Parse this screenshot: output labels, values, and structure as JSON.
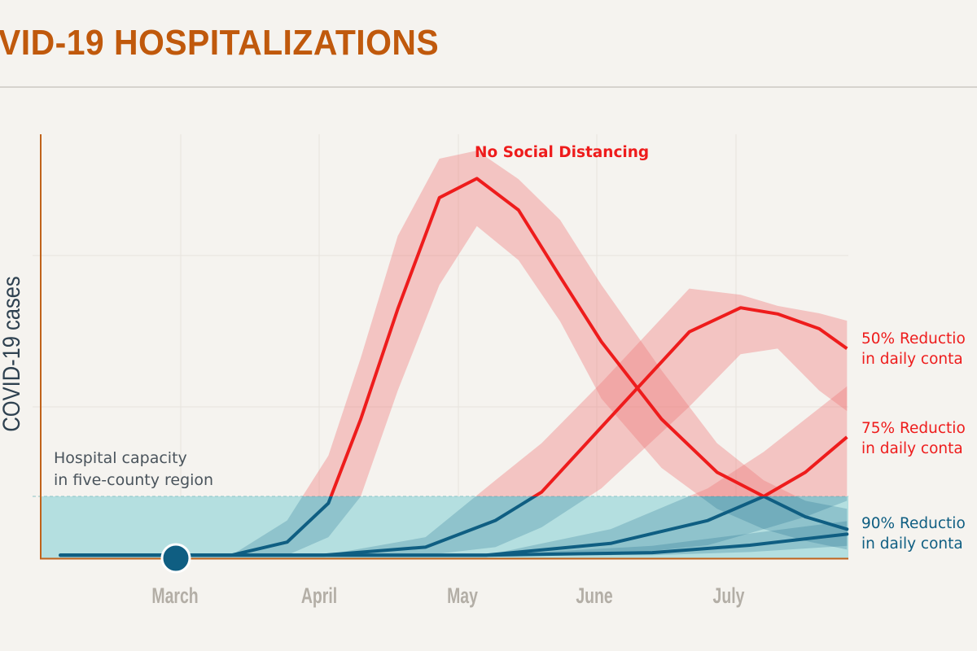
{
  "header": {
    "title": "VID-19 HOSPITALIZATIONS"
  },
  "chart_data": {
    "type": "line",
    "title": "VID-19 HOSPITALIZATIONS",
    "ylabel": "COVID-19 cases",
    "xlabel": "",
    "x_ticks": [
      "March",
      "April",
      "May",
      "June",
      "July"
    ],
    "grid": true,
    "colors": {
      "above_capacity": "#ee1c1c",
      "below_capacity": "#0f5e82",
      "band": "#f08a8a",
      "capacity_fill": "#b4dfe0",
      "axis": "#c0621a"
    },
    "capacity": {
      "label_line1": "Hospital capacity",
      "label_line2": "in five-county region",
      "value": 1
    },
    "marker": {
      "x": "Mar 1"
    },
    "series": [
      {
        "name": "No Social Distancing",
        "label_lines": [
          "No Social Distancing"
        ],
        "x": [
          "Feb 5",
          "Mar 12",
          "Mar 24",
          "Apr 3",
          "Apr 10",
          "Apr 18",
          "Apr 27",
          "May 5",
          "May 14",
          "May 23",
          "Jun 2",
          "Jun 15",
          "Jun 27",
          "Jul 7",
          "Jul 16",
          "Jul 25"
        ],
        "y": [
          0.05,
          0.05,
          0.26,
          0.89,
          2.25,
          4.03,
          5.83,
          6.14,
          5.63,
          4.55,
          3.5,
          2.25,
          1.39,
          1.0,
          0.67,
          0.47
        ],
        "hi": [
          0.05,
          0.05,
          0.61,
          1.66,
          3.24,
          5.21,
          6.46,
          6.59,
          6.13,
          5.47,
          4.42,
          3.04,
          1.86,
          1.26,
          0.93,
          0.8
        ],
        "lo": [
          0.05,
          0.05,
          0.05,
          0.34,
          1.0,
          2.71,
          4.42,
          5.37,
          4.82,
          3.83,
          2.58,
          1.46,
          0.8,
          0.47,
          0.28,
          0.14
        ]
      },
      {
        "name": "50% Reductio in daily conta",
        "label_lines": [
          "50% Reductio",
          "in daily conta"
        ],
        "x": [
          "Feb 5",
          "Apr 2",
          "Apr 24",
          "May 9",
          "May 19",
          "Jun 2",
          "Jun 21",
          "Jul 2",
          "Jul 10",
          "Jul 19",
          "Jul 25"
        ],
        "y": [
          0.05,
          0.05,
          0.18,
          0.61,
          1.07,
          2.12,
          3.66,
          4.05,
          3.95,
          3.71,
          3.39
        ],
        "hi": [
          0.05,
          0.05,
          0.34,
          1.26,
          1.86,
          2.84,
          4.36,
          4.26,
          4.08,
          3.96,
          3.84
        ],
        "lo": [
          0.05,
          0.05,
          0.05,
          0.18,
          0.5,
          1.13,
          2.45,
          3.3,
          3.39,
          2.71,
          2.38
        ]
      },
      {
        "name": "75% Reductio in daily conta",
        "label_lines": [
          "75% Reductio",
          "in daily conta"
        ],
        "x": [
          "Feb 5",
          "May 7",
          "Jun 4",
          "Jun 25",
          "Jul 7",
          "Jul 16",
          "Jul 25"
        ],
        "y": [
          0.05,
          0.05,
          0.24,
          0.61,
          1.0,
          1.39,
          1.96
        ],
        "hi": [
          0.05,
          0.05,
          0.47,
          1.13,
          1.72,
          2.25,
          2.78
        ],
        "lo": [
          0.05,
          0.05,
          0.05,
          0.21,
          0.47,
          0.67,
          0.93
        ]
      },
      {
        "name": "90% Reductio in daily conta",
        "label_lines": [
          "90% Reductio",
          "in daily conta"
        ],
        "x": [
          "Feb 5",
          "May 7",
          "Jun 13",
          "Jul 4",
          "Jul 25"
        ],
        "y": [
          0.05,
          0.05,
          0.09,
          0.21,
          0.39
        ],
        "hi": [
          0.05,
          0.05,
          0.2,
          0.4,
          0.6
        ],
        "lo": [
          0.05,
          0.05,
          0.05,
          0.1,
          0.2
        ]
      }
    ]
  }
}
